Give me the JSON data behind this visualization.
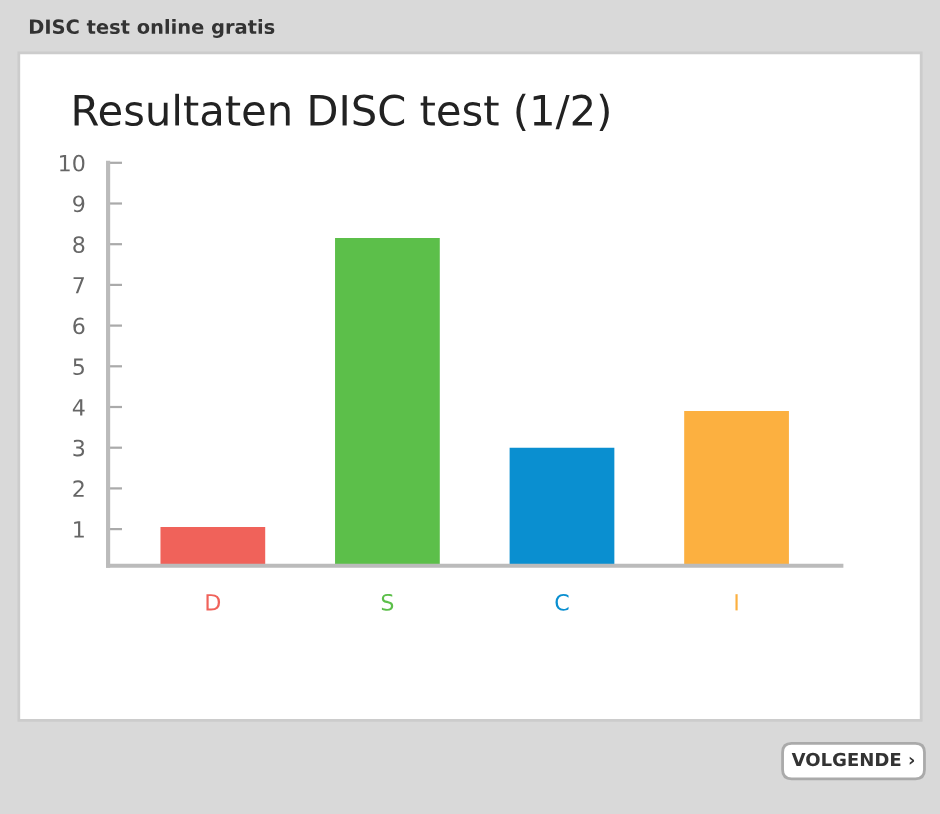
{
  "chart_data": {
    "type": "bar",
    "title": "Resultaten DISC test (1/2)",
    "categories": [
      "D",
      "S",
      "C",
      "I"
    ],
    "values": [
      1.05,
      8.15,
      3.0,
      3.9
    ],
    "colors": [
      "#f0625a",
      "#5cbf4a",
      "#0a8fd0",
      "#fcb040"
    ],
    "ylim": [
      0.1,
      10
    ],
    "yticks": [
      1,
      2,
      3,
      4,
      5,
      6,
      7,
      8,
      9,
      10
    ],
    "grid": false,
    "annotations": [
      "DISC test online gratis",
      "VOLGENDE ›"
    ]
  }
}
